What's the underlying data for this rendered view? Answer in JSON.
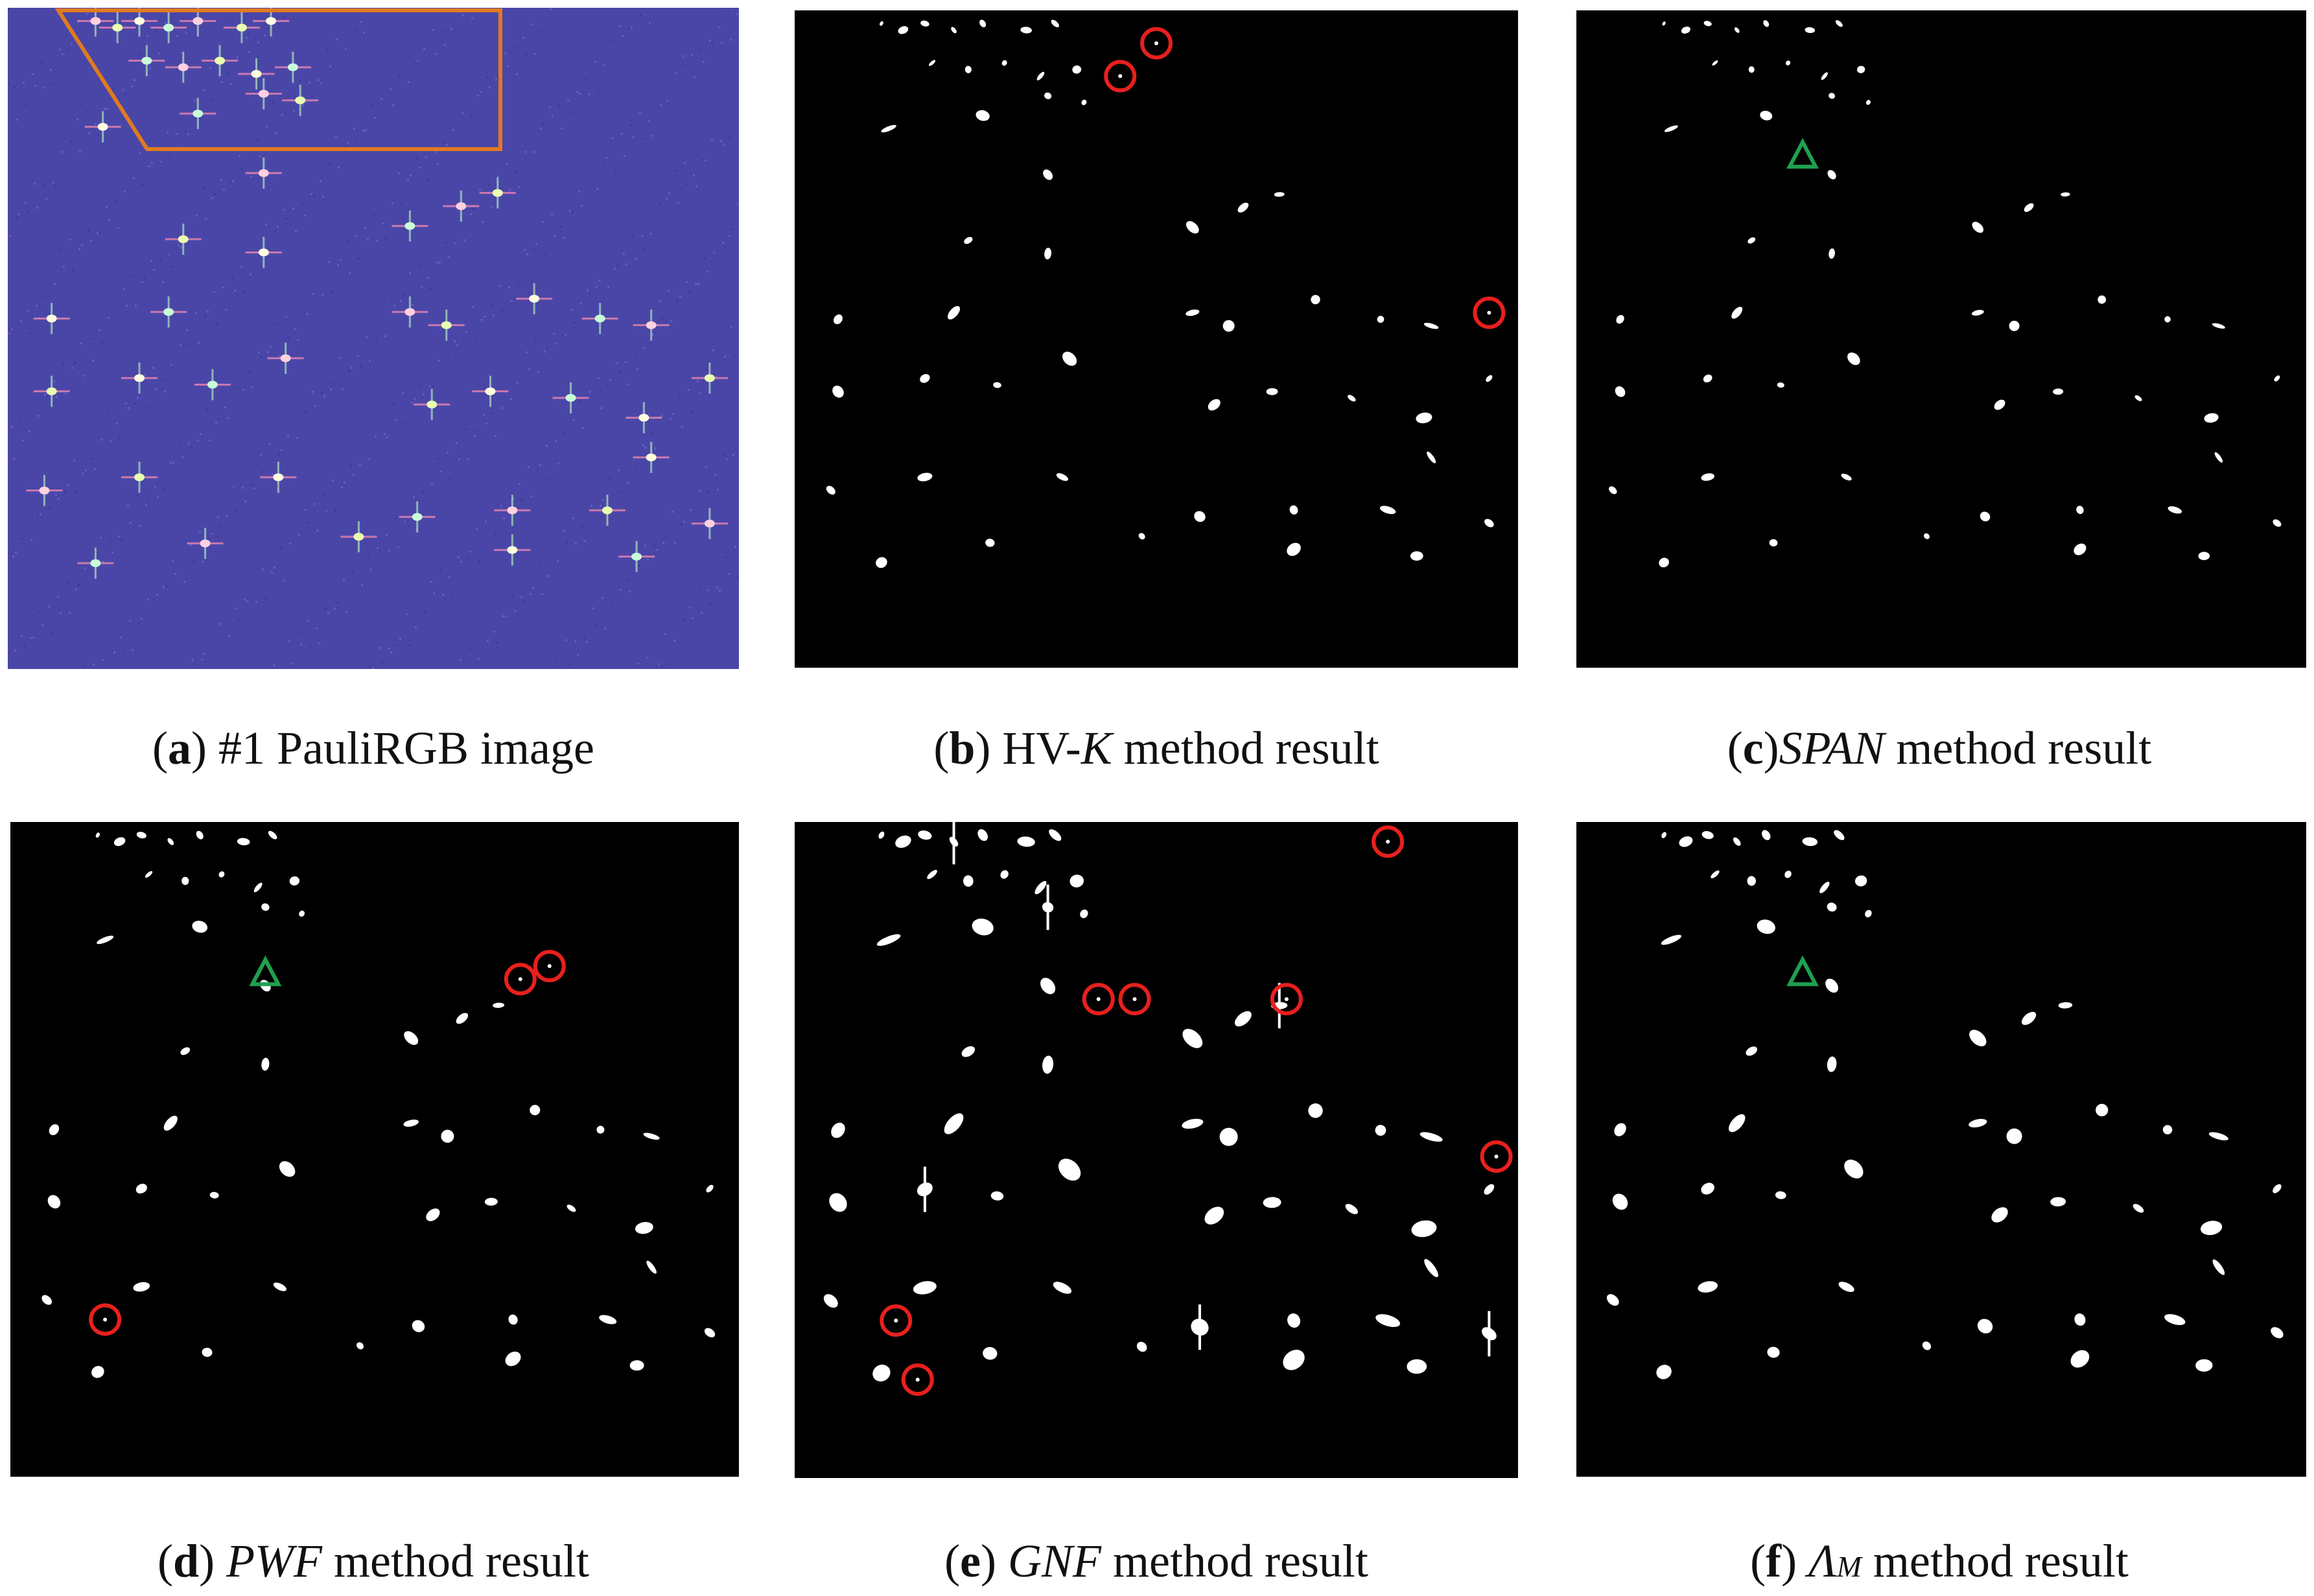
{
  "figure": {
    "panels": [
      {
        "id": "a",
        "caption": {
          "open": "(",
          "letter": "a",
          "close": ")",
          "rest": " #1 PauliRGB image"
        }
      },
      {
        "id": "b",
        "caption": {
          "open": "(",
          "letter": "b",
          "close": ")",
          "pre": " HV-",
          "italic": "K",
          "post": " method result"
        }
      },
      {
        "id": "c",
        "caption": {
          "open": "(",
          "letter": "c",
          "close": ")",
          "italic": "SPAN",
          "post": " method result"
        }
      },
      {
        "id": "d",
        "caption": {
          "open": "(",
          "letter": "d",
          "close": ")",
          "italic": "PWF",
          "post": " method result"
        }
      },
      {
        "id": "e",
        "caption": {
          "open": "(",
          "letter": "e",
          "close": ")",
          "italic": "GNF",
          "post": " method result"
        }
      },
      {
        "id": "f",
        "caption": {
          "open": "(",
          "letter": "f",
          "close": ")",
          "italic": "Λ",
          "sub": "M",
          "post": " method result"
        }
      }
    ],
    "colors": {
      "pauli_background": "#4a46a8",
      "result_background": "#000000",
      "target": "#ffffff",
      "roi_box": "#e07a1f",
      "false_alarm_marker": "#e8201e",
      "missed_marker": "#1fa050"
    },
    "markers": {
      "false_alarm_shape": "red-circle",
      "missed_shape": "green-triangle"
    }
  }
}
